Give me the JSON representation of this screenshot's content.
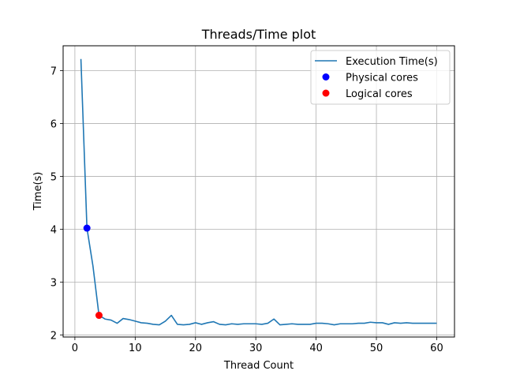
{
  "chart_data": {
    "type": "line",
    "title": "Threads/Time plot",
    "xlabel": "Thread Count",
    "ylabel": "Time(s)",
    "xlim": [
      -1.95,
      62.95
    ],
    "ylim": [
      1.96,
      7.47
    ],
    "xticks": [
      0,
      10,
      20,
      30,
      40,
      50,
      60
    ],
    "yticks": [
      2,
      3,
      4,
      5,
      6,
      7
    ],
    "grid": true,
    "legend_position": "top-right",
    "series": [
      {
        "name": "Execution Time(s)",
        "kind": "line",
        "color": "#1f77b4",
        "x": [
          1,
          2,
          3,
          4,
          5,
          6,
          7,
          8,
          9,
          10,
          11,
          12,
          13,
          14,
          15,
          16,
          17,
          18,
          19,
          20,
          21,
          22,
          23,
          24,
          25,
          26,
          27,
          28,
          29,
          30,
          31,
          32,
          33,
          34,
          35,
          36,
          37,
          38,
          39,
          40,
          41,
          42,
          43,
          44,
          45,
          46,
          47,
          48,
          49,
          50,
          51,
          52,
          53,
          54,
          55,
          56,
          57,
          58,
          59,
          60
        ],
        "y": [
          7.22,
          4.02,
          3.3,
          2.37,
          2.3,
          2.28,
          2.22,
          2.31,
          2.29,
          2.26,
          2.23,
          2.22,
          2.2,
          2.19,
          2.26,
          2.37,
          2.2,
          2.19,
          2.2,
          2.23,
          2.2,
          2.23,
          2.25,
          2.2,
          2.19,
          2.21,
          2.2,
          2.21,
          2.21,
          2.21,
          2.2,
          2.22,
          2.3,
          2.19,
          2.2,
          2.21,
          2.2,
          2.2,
          2.2,
          2.22,
          2.22,
          2.21,
          2.19,
          2.21,
          2.21,
          2.21,
          2.22,
          2.22,
          2.24,
          2.23,
          2.23,
          2.2,
          2.23,
          2.22,
          2.23,
          2.22,
          2.22,
          2.22,
          2.22,
          2.22
        ]
      },
      {
        "name": "Physical cores",
        "kind": "scatter",
        "color": "#0000ff",
        "x": [
          2
        ],
        "y": [
          4.02
        ]
      },
      {
        "name": "Logical cores",
        "kind": "scatter",
        "color": "#ff0000",
        "x": [
          4
        ],
        "y": [
          2.37
        ]
      }
    ]
  }
}
